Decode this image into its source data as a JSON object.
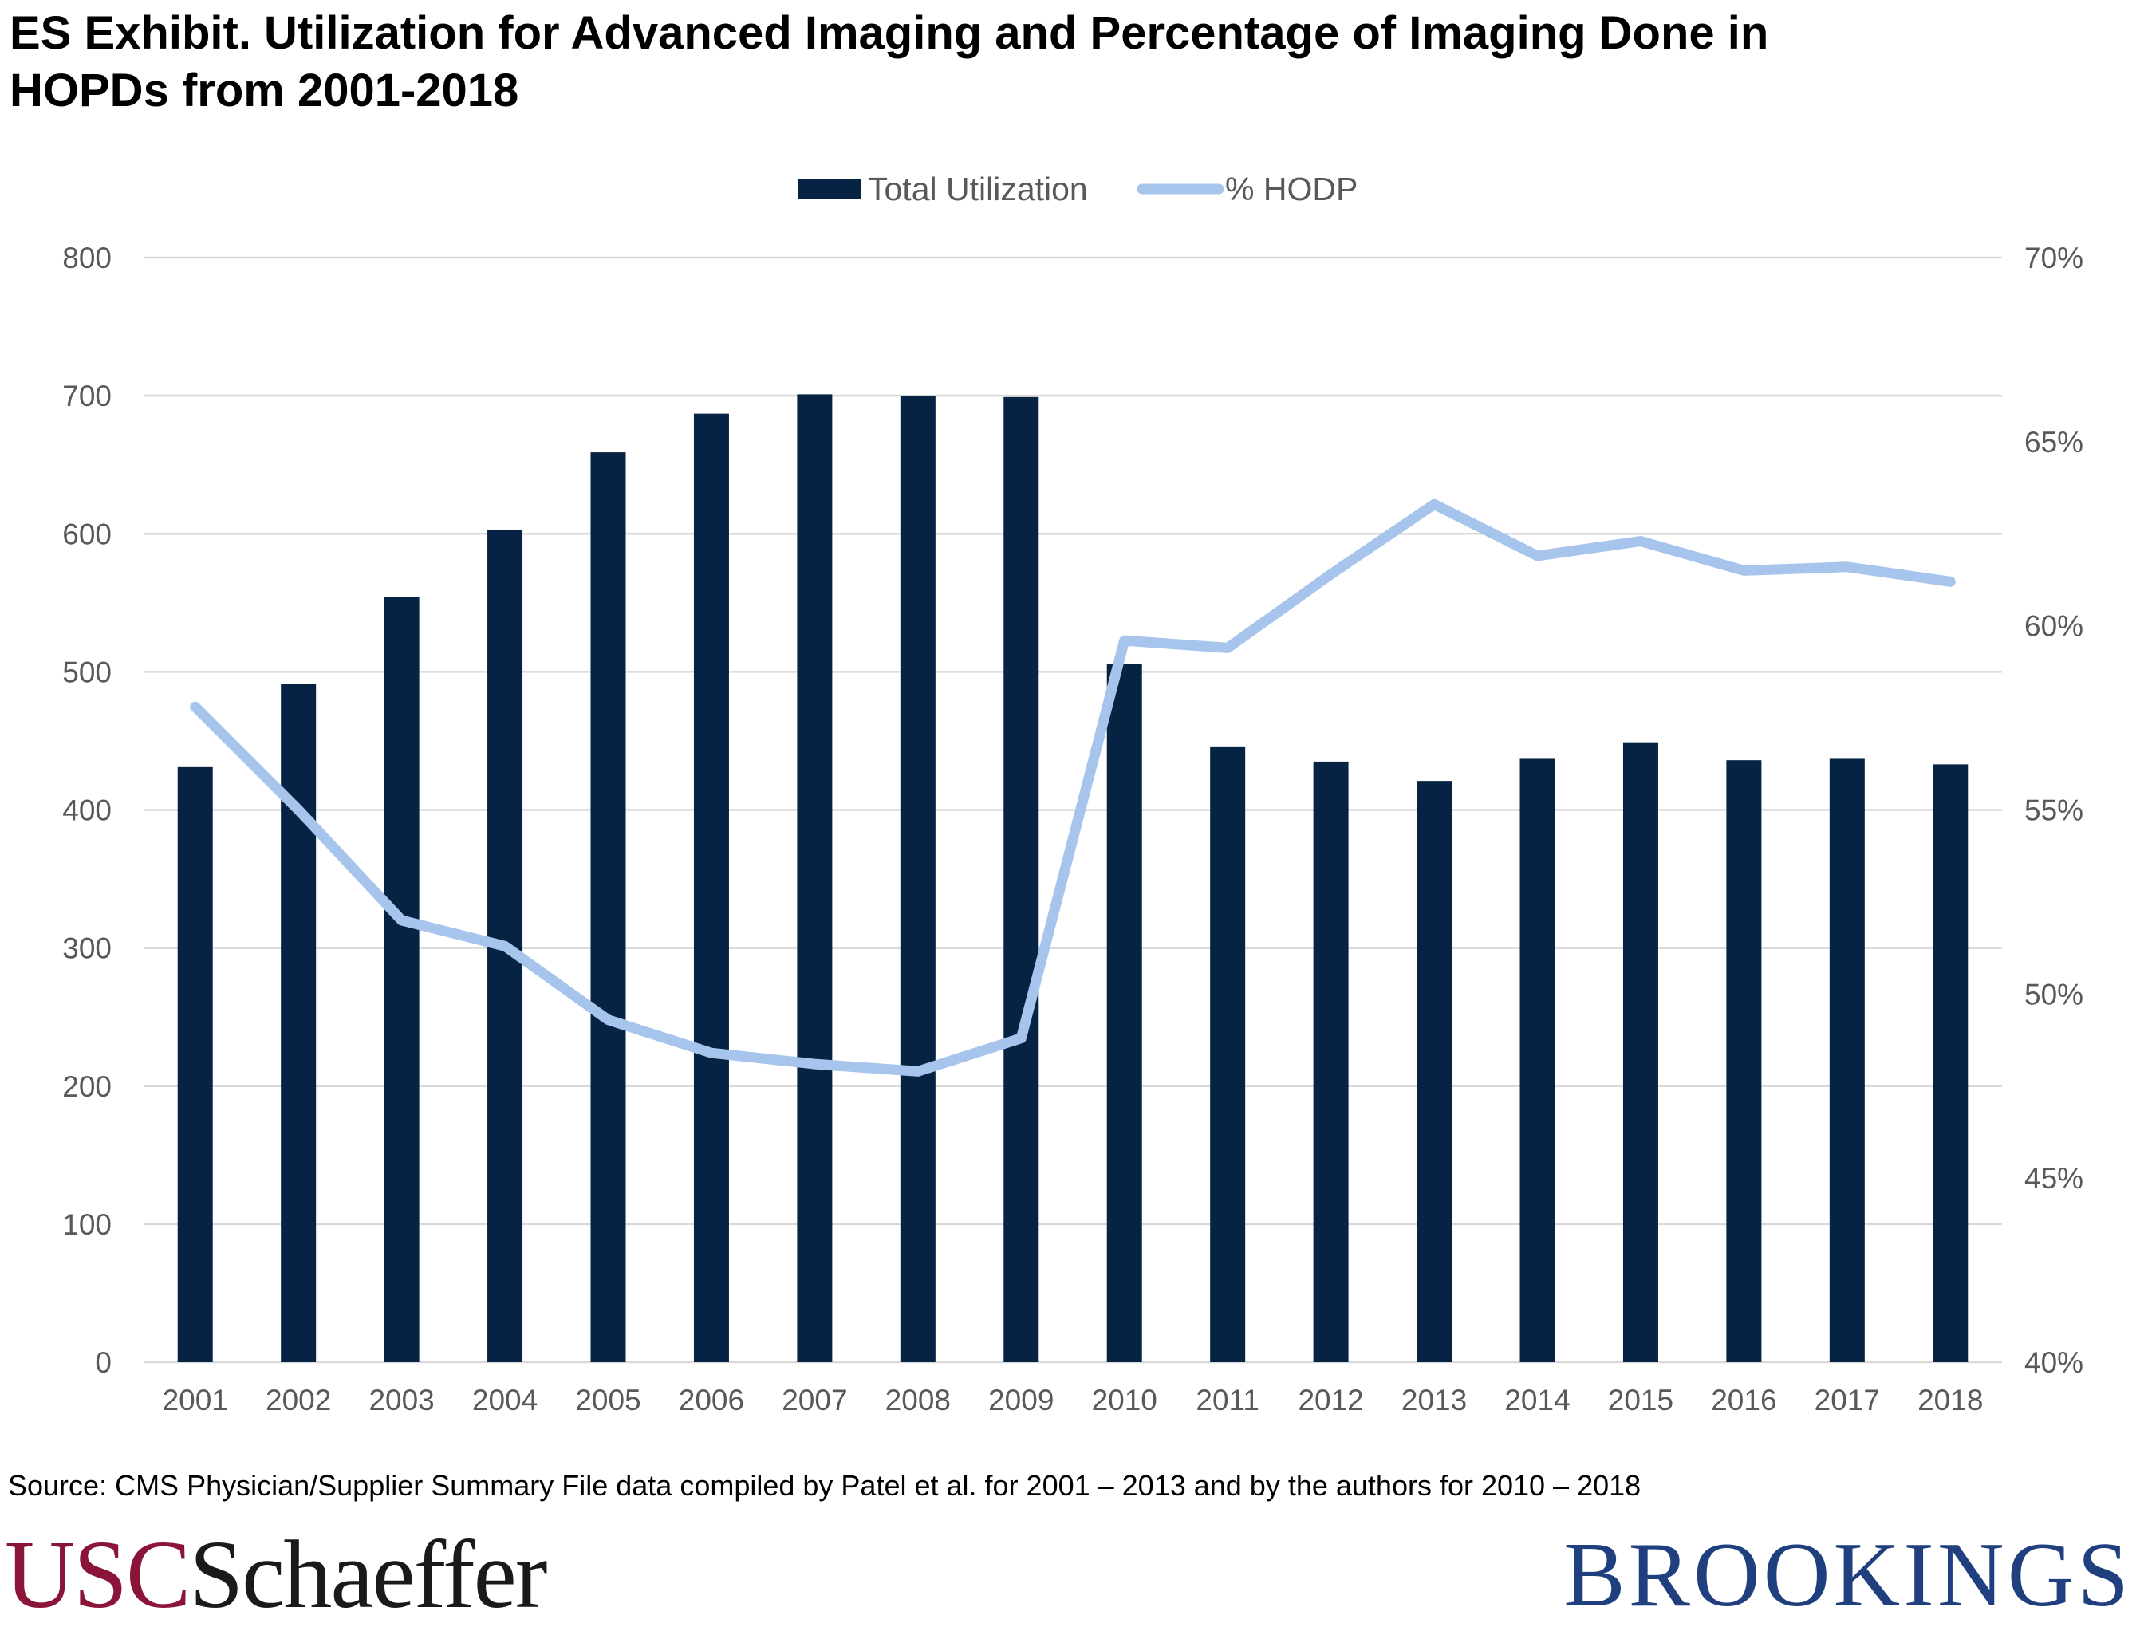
{
  "title_line1": "ES Exhibit. Utilization for Advanced Imaging and Percentage of Imaging Done in",
  "title_line2": "HOPDs from 2001-2018",
  "source": "Source: CMS Physician/Supplier Summary File data compiled by Patel et al. for 2001 – 2013 and by the authors for 2010 – 2018",
  "logo_usc": "USC",
  "logo_schaeffer": "Schaeffer",
  "logo_brookings": "BROOKINGS",
  "colors": {
    "bar": "#062343",
    "line": "#a6c4ec",
    "grid": "#d9d9d9",
    "axis_text": "#595959"
  },
  "chart_data": {
    "type": "bar+line",
    "categories": [
      "2001",
      "2002",
      "2003",
      "2004",
      "2005",
      "2006",
      "2007",
      "2008",
      "2009",
      "2010",
      "2011",
      "2012",
      "2013",
      "2014",
      "2015",
      "2016",
      "2017",
      "2018"
    ],
    "series": [
      {
        "name": "Total Utilization",
        "type": "bar",
        "axis": "left",
        "values": [
          431,
          491,
          554,
          603,
          659,
          687,
          701,
          700,
          699,
          506,
          446,
          435,
          421,
          437,
          449,
          436,
          437,
          433
        ]
      },
      {
        "name": "% HODP",
        "type": "line",
        "axis": "right",
        "values": [
          0.578,
          0.55,
          0.52,
          0.513,
          0.493,
          0.484,
          0.481,
          0.479,
          0.488,
          0.596,
          0.594,
          0.614,
          0.633,
          0.619,
          0.623,
          0.615,
          0.616,
          0.612
        ]
      }
    ],
    "left_axis": {
      "min": 0,
      "max": 800,
      "ticks": [
        0,
        100,
        200,
        300,
        400,
        500,
        600,
        700,
        800
      ],
      "tick_labels": [
        "0",
        "100",
        "200",
        "300",
        "400",
        "500",
        "600",
        "700",
        "800"
      ]
    },
    "right_axis": {
      "min": 0.4,
      "max": 0.7,
      "ticks": [
        0.4,
        0.45,
        0.5,
        0.55,
        0.6,
        0.65,
        0.7
      ],
      "tick_labels": [
        "40%",
        "45%",
        "50%",
        "55%",
        "60%",
        "65%",
        "70%"
      ]
    },
    "legend": {
      "position": "top-center",
      "items": [
        "Total Utilization",
        "% HODP"
      ]
    },
    "grid": true
  }
}
